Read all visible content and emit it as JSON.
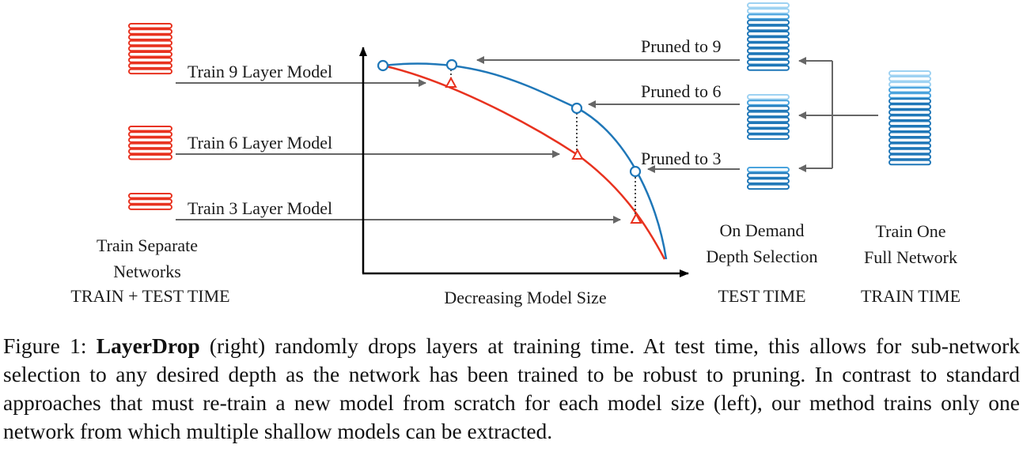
{
  "colors": {
    "red": "#e8321f",
    "blue": "#1f77b8",
    "blue_mid": "#4aa3dd",
    "blue_light": "#9ed2f2",
    "arrow": "#666666",
    "axis": "#000000"
  },
  "left": {
    "rows": [
      {
        "label": "Train 9 Layer Model",
        "layers": 9
      },
      {
        "label": "Train 6 Layer Model",
        "layers": 6
      },
      {
        "label": "Train 3 Layer Model",
        "layers": 3
      }
    ],
    "caption_lines": [
      "Train Separate",
      "Networks",
      "TRAIN + TEST TIME"
    ]
  },
  "axis": {
    "xlabel": "Decreasing Model Size"
  },
  "middle": {
    "rows": [
      {
        "label": "Pruned to 9"
      },
      {
        "label": "Pruned to 6"
      },
      {
        "label": "Pruned to 3"
      }
    ],
    "caption_lines": [
      "On Demand",
      "Depth Selection",
      "TEST TIME"
    ]
  },
  "right": {
    "caption_lines": [
      "Train One",
      "Full Network",
      "TRAIN TIME"
    ]
  },
  "caption": {
    "prefix": "Figure 1: ",
    "bold": "LayerDrop",
    "text": " (right) randomly drops layers at training time.  At test time, this allows for sub-network selection to any desired depth as the network has been trained to be robust to pruning. In contrast to standard approaches that must re-train a new model from scratch for each model size (left), our method trains only one network from which multiple shallow models can be extracted."
  }
}
